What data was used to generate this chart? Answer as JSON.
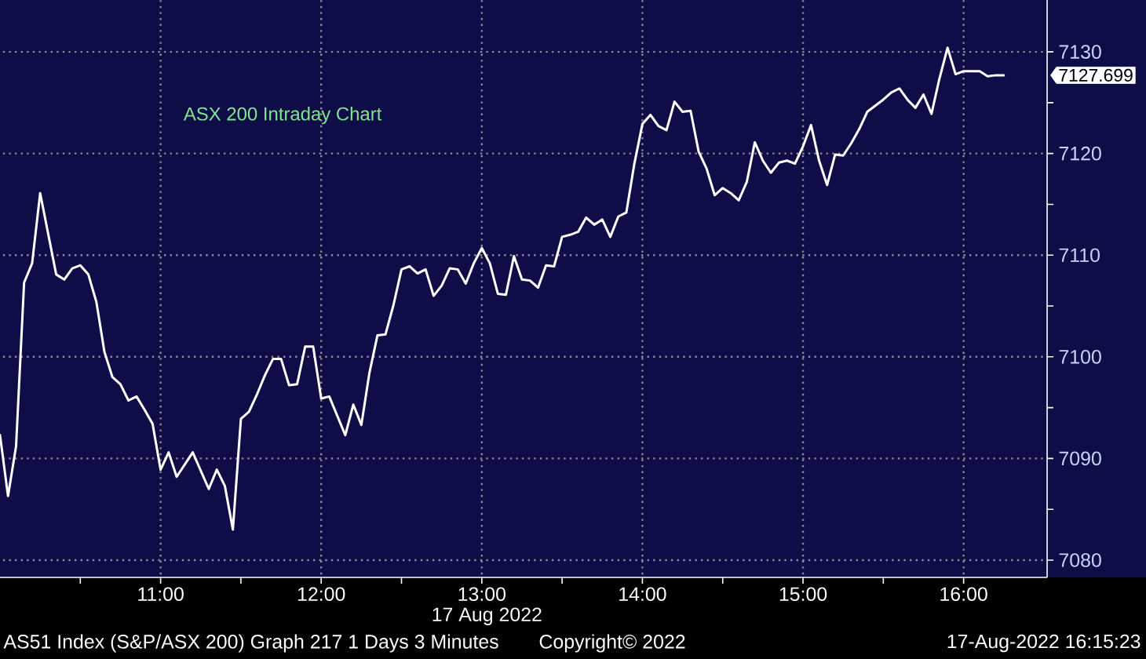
{
  "chart_data": {
    "type": "line",
    "title": "ASX 200 Intraday Chart",
    "xlabel": "17 Aug 2022",
    "x": [
      10.0,
      10.05,
      10.1,
      10.15,
      10.2,
      10.25,
      10.35,
      10.4,
      10.45,
      10.5,
      10.55,
      10.6,
      10.65,
      10.7,
      10.75,
      10.8,
      10.85,
      10.9,
      10.95,
      11.0,
      11.05,
      11.1,
      11.2,
      11.3,
      11.35,
      11.4,
      11.45,
      11.5,
      11.55,
      11.6,
      11.65,
      11.7,
      11.75,
      11.8,
      11.85,
      11.9,
      11.95,
      12.0,
      12.05,
      12.15,
      12.2,
      12.25,
      12.3,
      12.35,
      12.4,
      12.45,
      12.5,
      12.55,
      12.6,
      12.65,
      12.7,
      12.75,
      12.8,
      12.85,
      12.9,
      12.95,
      13.0,
      13.05,
      13.1,
      13.15,
      13.2,
      13.25,
      13.3,
      13.35,
      13.4,
      13.45,
      13.5,
      13.55,
      13.6,
      13.65,
      13.7,
      13.75,
      13.8,
      13.85,
      13.9,
      13.95,
      14.0,
      14.05,
      14.1,
      14.15,
      14.2,
      14.25,
      14.3,
      14.35,
      14.4,
      14.45,
      14.5,
      14.55,
      14.6,
      14.65,
      14.7,
      14.75,
      14.8,
      14.85,
      14.9,
      14.95,
      15.0,
      15.05,
      15.1,
      15.15,
      15.2,
      15.25,
      15.3,
      15.35,
      15.4,
      15.45,
      15.5,
      15.55,
      15.6,
      15.65,
      15.7,
      15.75,
      15.8,
      15.85,
      15.9,
      15.95,
      16.0,
      16.05,
      16.1,
      16.15,
      16.2,
      16.25
    ],
    "values": [
      7092.3,
      7086.3,
      7091.2,
      7107.3,
      7109.2,
      7116.1,
      7108.1,
      7107.6,
      7108.7,
      7109.0,
      7108.1,
      7105.4,
      7100.5,
      7098.0,
      7097.3,
      7095.7,
      7096.1,
      7094.8,
      7093.4,
      7088.9,
      7090.6,
      7088.2,
      7090.6,
      7087.0,
      7088.9,
      7087.3,
      7083.0,
      7093.9,
      7094.6,
      7096.3,
      7098.2,
      7099.8,
      7099.8,
      7097.2,
      7097.3,
      7101.0,
      7101.0,
      7095.9,
      7096.1,
      7092.3,
      7095.3,
      7093.3,
      7098.4,
      7102.1,
      7102.2,
      7105.1,
      7108.6,
      7108.9,
      7108.2,
      7108.6,
      7106.0,
      7107.0,
      7108.7,
      7108.6,
      7107.2,
      7109.2,
      7110.7,
      7109.2,
      7106.2,
      7106.1,
      7109.9,
      7107.6,
      7107.5,
      7106.8,
      7109.0,
      7108.9,
      7111.8,
      7112.0,
      7112.3,
      7113.7,
      7113.0,
      7113.5,
      7111.8,
      7113.8,
      7114.2,
      7119.0,
      7122.9,
      7123.8,
      7122.7,
      7122.3,
      7125.1,
      7124.1,
      7124.2,
      7120.2,
      7118.5,
      7115.9,
      7116.6,
      7116.1,
      7115.4,
      7117.2,
      7121.1,
      7119.3,
      7118.1,
      7119.1,
      7119.3,
      7119.0,
      7120.7,
      7122.8,
      7119.3,
      7116.9,
      7119.9,
      7119.8,
      7121.0,
      7122.4,
      7124.1,
      7124.7,
      7125.3,
      7126.0,
      7126.4,
      7125.3,
      7124.5,
      7125.8,
      7123.9,
      7127.4,
      7130.4,
      7127.8,
      7128.1,
      7128.1,
      7128.1,
      7127.6,
      7127.7,
      7127.7
    ],
    "color": "#ffffff",
    "line_style": "solid",
    "grid": true,
    "xlim": [
      10.0,
      16.52
    ],
    "xticks": [
      {
        "value": 10.5,
        "label": null
      },
      {
        "value": 11,
        "label": "11:00"
      },
      {
        "value": 11.5,
        "label": null
      },
      {
        "value": 12,
        "label": "12:00"
      },
      {
        "value": 12.5,
        "label": null
      },
      {
        "value": 13,
        "label": "13:00"
      },
      {
        "value": 13.5,
        "label": null
      },
      {
        "value": 14,
        "label": "14:00"
      },
      {
        "value": 14.5,
        "label": null
      },
      {
        "value": 15,
        "label": "15:00"
      },
      {
        "value": 15.5,
        "label": null
      },
      {
        "value": 16,
        "label": "16:00"
      }
    ],
    "ylim": [
      7078.3,
      7135.1
    ],
    "yticks": [
      7080,
      {
        "value": 7085,
        "label": null
      },
      7090,
      {
        "value": 7095,
        "label": null
      },
      7100,
      {
        "value": 7105,
        "label": null
      },
      7110,
      {
        "value": 7115,
        "label": null
      },
      7120,
      {
        "value": 7125,
        "label": null
      },
      7130
    ],
    "annotations": [
      "7127.699",
      "AS51 Index (S&P/ASX 200) Graph 217 1 Days 3 Minutes",
      "Copyright© 2022",
      "17-Aug-2022 16:15:23"
    ]
  }
}
